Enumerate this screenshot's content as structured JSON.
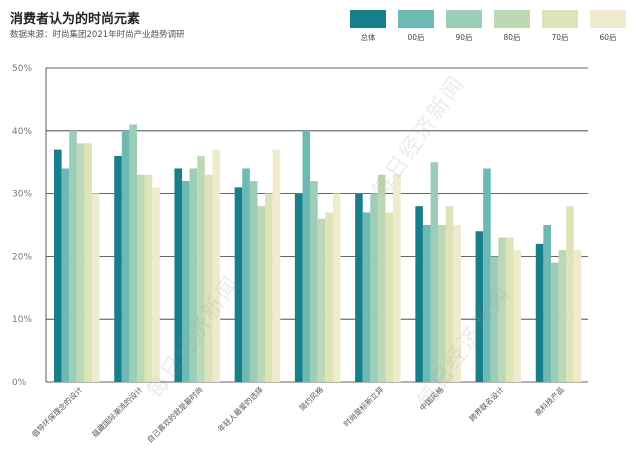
{
  "title": "消费者认为的时尚元素",
  "subtitle": "数据来源：时尚集团2021年时尚产业趋势调研",
  "watermark": "每日经济新闻",
  "colors": [
    "#177f8a",
    "#6dbab4",
    "#9ccdb8",
    "#bcd8b4",
    "#dde4b8",
    "#efebcf"
  ],
  "chart_data": {
    "type": "bar",
    "categories": [
      "倡导环保理念的设计",
      "蕴藏国际潮流的设计",
      "自己喜欢的就是最时尚",
      "年轻人最爱的选择",
      "简约风格",
      "时尚是标新立异",
      "中国风格",
      "跨界联名设计",
      "高科技产品"
    ],
    "series": [
      {
        "name": "总体",
        "values": [
          37,
          36,
          34,
          31,
          30,
          30,
          28,
          24,
          22
        ]
      },
      {
        "name": "00后",
        "values": [
          34,
          40,
          32,
          34,
          40,
          27,
          25,
          34,
          25
        ]
      },
      {
        "name": "90后",
        "values": [
          40,
          41,
          34,
          32,
          32,
          30,
          35,
          20,
          19
        ]
      },
      {
        "name": "80后",
        "values": [
          38,
          33,
          36,
          28,
          26,
          33,
          25,
          23,
          21
        ]
      },
      {
        "name": "70后",
        "values": [
          38,
          33,
          33,
          30,
          27,
          27,
          28,
          23,
          28
        ]
      },
      {
        "name": "60后",
        "values": [
          30,
          31,
          37,
          37,
          30,
          33,
          25,
          21,
          21
        ]
      }
    ],
    "yticks": [
      "0%",
      "10%",
      "20%",
      "30%",
      "40%",
      "50%"
    ],
    "ylim": [
      0,
      50
    ],
    "grid": true,
    "legend": "top-right"
  }
}
